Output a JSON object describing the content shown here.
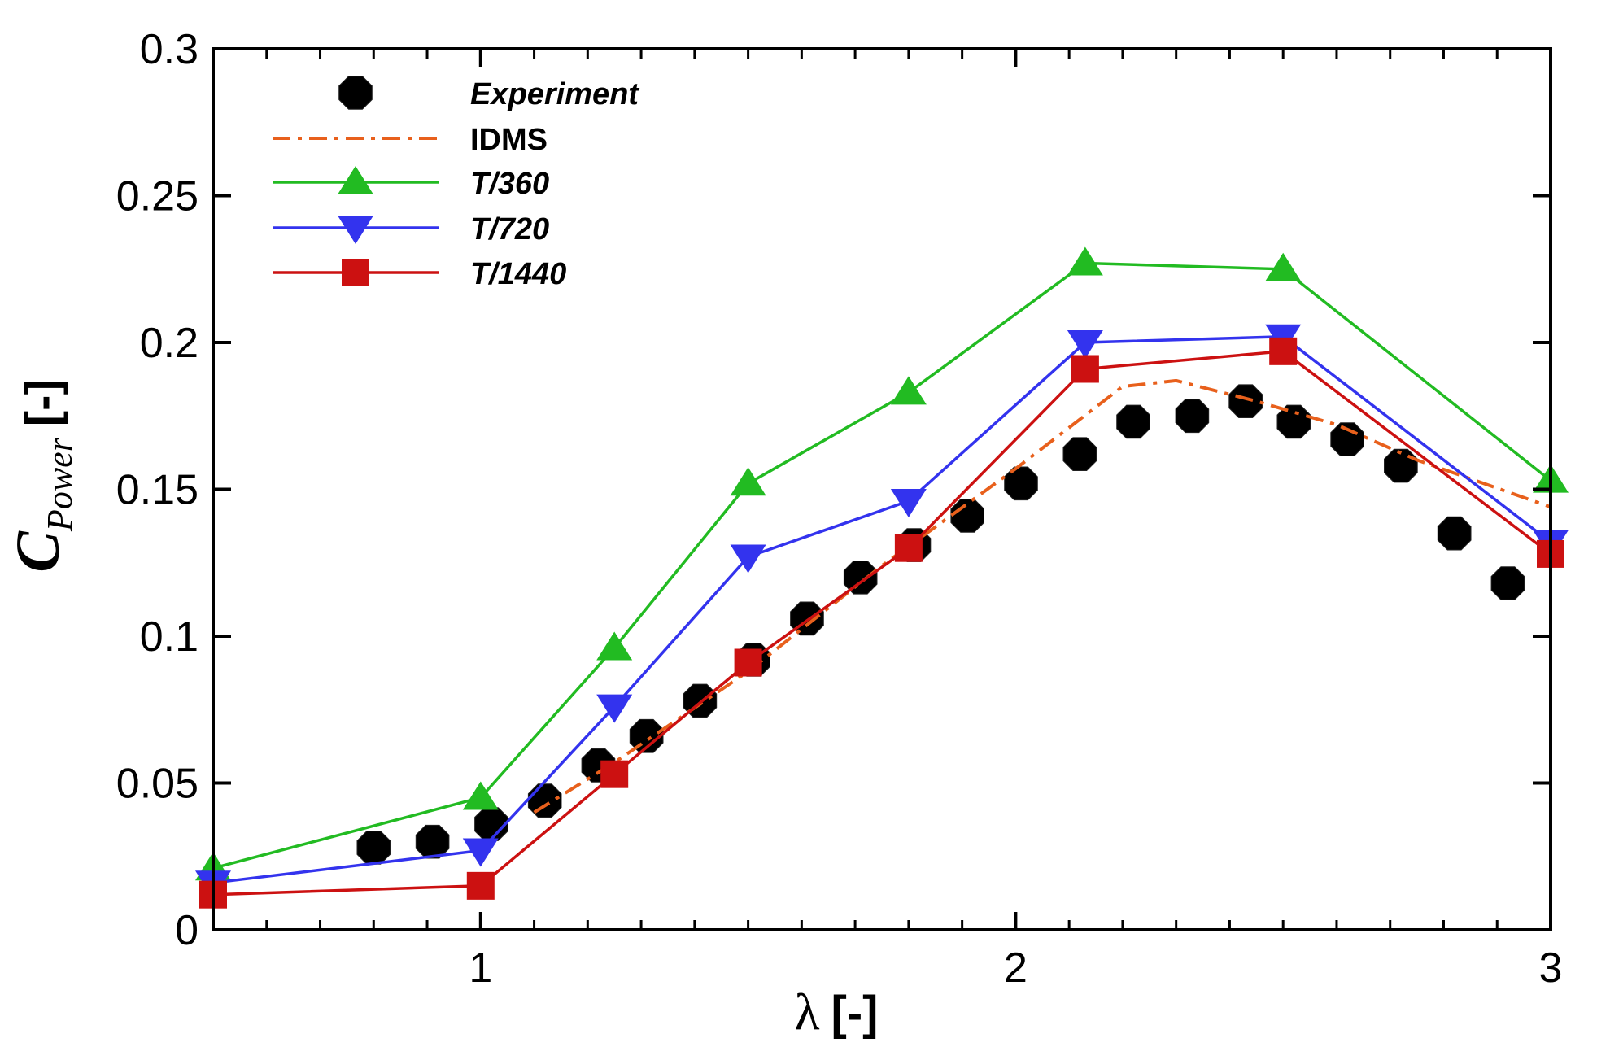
{
  "chart_data": {
    "type": "line",
    "title": "",
    "xlabel": {
      "symbol": "λ",
      "unit": "[-]"
    },
    "ylabel": {
      "symbol": "C",
      "subscript": "Power",
      "unit": "[-]"
    },
    "xlim": [
      0.5,
      3.0
    ],
    "ylim": [
      0.0,
      0.3
    ],
    "x_ticks": [
      1,
      2,
      3
    ],
    "x_tick_labels": [
      "1",
      "2",
      "3"
    ],
    "x_minor_ticks": [
      0.6,
      0.7,
      0.8,
      0.9,
      1.1,
      1.2,
      1.3,
      1.4,
      1.5,
      1.6,
      1.7,
      1.8,
      1.9,
      2.1,
      2.2,
      2.3,
      2.4,
      2.5,
      2.6,
      2.7,
      2.8,
      2.9
    ],
    "y_ticks": [
      0,
      0.05,
      0.1,
      0.15,
      0.2,
      0.25,
      0.3
    ],
    "y_tick_labels": [
      "0",
      "0.05",
      "0.1",
      "0.15",
      "0.2",
      "0.25",
      "0.3"
    ],
    "legend_position": "top-left",
    "series": [
      {
        "name": "Experiment",
        "style": "markers",
        "marker": "octagon",
        "color": "#000000",
        "italic": true,
        "x": [
          0.8,
          0.91,
          1.02,
          1.12,
          1.22,
          1.31,
          1.41,
          1.51,
          1.61,
          1.71,
          1.81,
          1.91,
          2.01,
          2.12,
          2.22,
          2.33,
          2.43,
          2.52,
          2.62,
          2.72,
          2.82,
          2.92
        ],
        "y": [
          0.028,
          0.03,
          0.036,
          0.044,
          0.056,
          0.066,
          0.078,
          0.092,
          0.106,
          0.12,
          0.131,
          0.141,
          0.152,
          0.162,
          0.173,
          0.175,
          0.18,
          0.173,
          0.167,
          0.158,
          0.135,
          0.118
        ]
      },
      {
        "name": "IDMS",
        "style": "dashdot",
        "color": "#e8601c",
        "italic": false,
        "x": [
          1.1,
          1.25,
          1.5,
          1.75,
          2.0,
          2.2,
          2.3,
          2.45,
          2.6,
          2.75,
          3.0
        ],
        "y": [
          0.04,
          0.057,
          0.088,
          0.124,
          0.157,
          0.185,
          0.187,
          0.18,
          0.172,
          0.16,
          0.144
        ]
      },
      {
        "name": "T/360",
        "style": "line-markers",
        "marker": "triangle-up",
        "color": "#22bb22",
        "italic": true,
        "x": [
          0.5,
          1.0,
          1.25,
          1.5,
          1.8,
          2.13,
          2.5,
          3.0
        ],
        "y": [
          0.021,
          0.045,
          0.096,
          0.152,
          0.183,
          0.227,
          0.225,
          0.153
        ]
      },
      {
        "name": "T/720",
        "style": "line-markers",
        "marker": "triangle-down",
        "color": "#3333ee",
        "italic": true,
        "x": [
          0.5,
          1.0,
          1.25,
          1.5,
          1.8,
          2.13,
          2.5,
          3.0
        ],
        "y": [
          0.016,
          0.027,
          0.076,
          0.127,
          0.146,
          0.2,
          0.202,
          0.132
        ]
      },
      {
        "name": "T/1440",
        "style": "line-markers",
        "marker": "square",
        "color": "#cc1111",
        "italic": true,
        "x": [
          0.5,
          1.0,
          1.25,
          1.5,
          1.8,
          2.13,
          2.5,
          3.0
        ],
        "y": [
          0.012,
          0.015,
          0.053,
          0.091,
          0.13,
          0.191,
          0.197,
          0.128
        ]
      }
    ]
  }
}
